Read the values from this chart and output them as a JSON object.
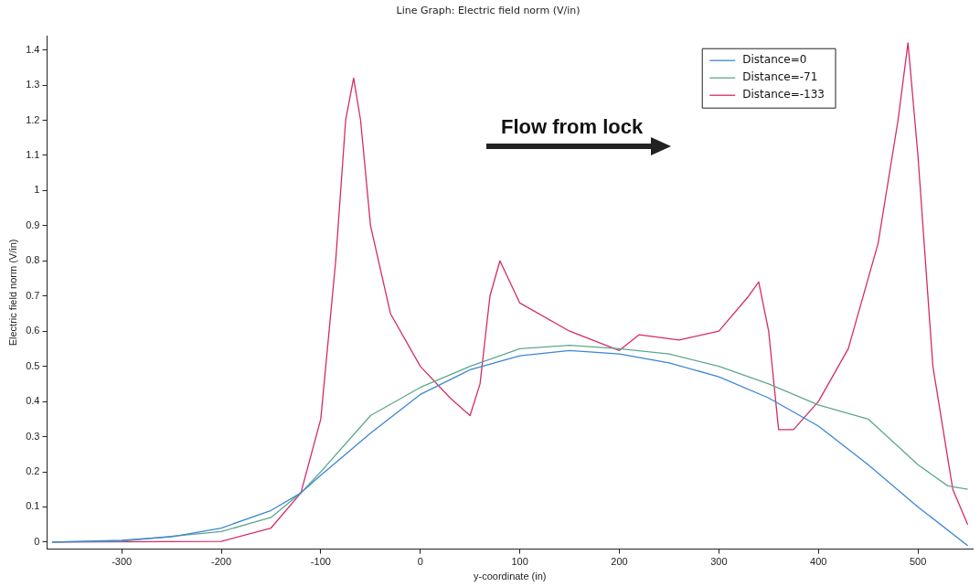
{
  "chart_data": {
    "type": "line",
    "title": "Line Graph: Electric field norm (V/in)",
    "xlabel": "y-coordinate (in)",
    "ylabel": "Electric field norm (V/in)",
    "xlim": [
      -375,
      555
    ],
    "xticks": [
      -300,
      -200,
      -100,
      0,
      100,
      200,
      300,
      400,
      500
    ],
    "ylim": [
      -0.02,
      1.44
    ],
    "yticks": [
      0,
      0.1,
      0.2,
      0.3,
      0.4,
      0.5,
      0.6,
      0.7,
      0.8,
      0.9,
      1,
      1.1,
      1.2,
      1.3,
      1.4
    ],
    "grid": false,
    "legend": "top right",
    "marker": "none",
    "line_style": "solid",
    "annotations": [
      "Flow from lock"
    ],
    "series": [
      {
        "name": "Distance=0",
        "color": "#3b86d6",
        "x": [
          -370,
          -300,
          -250,
          -200,
          -150,
          -120,
          -100,
          -50,
          0,
          50,
          100,
          150,
          200,
          250,
          300,
          350,
          400,
          450,
          500,
          550
        ],
        "values": [
          0,
          0.005,
          0.015,
          0.04,
          0.09,
          0.14,
          0.19,
          0.31,
          0.42,
          0.49,
          0.53,
          0.545,
          0.535,
          0.51,
          0.47,
          0.41,
          0.33,
          0.22,
          0.1,
          -0.01
        ]
      },
      {
        "name": "Distance=-71",
        "color": "#5fa88a",
        "x": [
          -370,
          -300,
          -200,
          -150,
          -120,
          -100,
          -50,
          0,
          50,
          100,
          150,
          200,
          250,
          300,
          350,
          400,
          450,
          500,
          530,
          550
        ],
        "values": [
          0,
          0.003,
          0.03,
          0.07,
          0.14,
          0.2,
          0.36,
          0.44,
          0.5,
          0.55,
          0.56,
          0.55,
          0.535,
          0.5,
          0.45,
          0.39,
          0.35,
          0.22,
          0.16,
          0.15
        ]
      },
      {
        "name": "Distance=-133",
        "color": "#d62a6a",
        "x": [
          -370,
          -200,
          -150,
          -120,
          -100,
          -85,
          -75,
          -67,
          -60,
          -50,
          -30,
          0,
          30,
          50,
          60,
          70,
          80,
          100,
          150,
          200,
          220,
          260,
          300,
          330,
          340,
          350,
          360,
          375,
          400,
          430,
          460,
          480,
          490,
          500,
          515,
          535,
          550
        ],
        "values": [
          0,
          0.002,
          0.04,
          0.14,
          0.35,
          0.8,
          1.2,
          1.32,
          1.2,
          0.9,
          0.65,
          0.5,
          0.41,
          0.36,
          0.45,
          0.7,
          0.8,
          0.68,
          0.6,
          0.545,
          0.59,
          0.575,
          0.6,
          0.7,
          0.74,
          0.6,
          0.32,
          0.32,
          0.4,
          0.55,
          0.85,
          1.2,
          1.42,
          1.1,
          0.5,
          0.15,
          0.05
        ]
      }
    ]
  }
}
